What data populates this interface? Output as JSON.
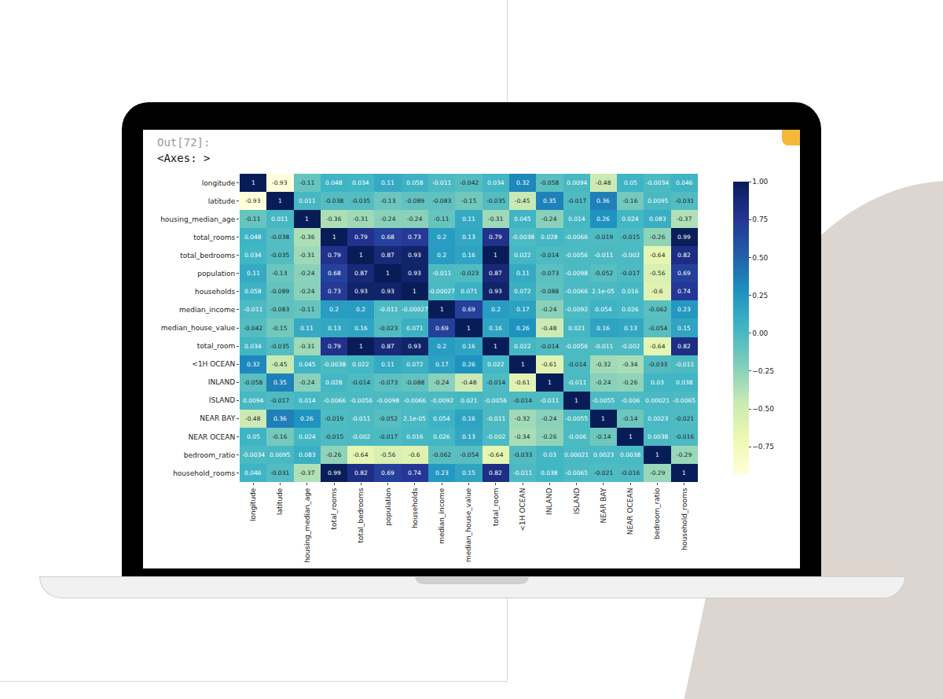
{
  "chart_data": {
    "type": "heatmap",
    "annotations": [
      "Out[72]:",
      "<Axes: >"
    ],
    "categories": [
      "longitude",
      "latitude",
      "housing_median_age",
      "total_rooms",
      "total_bedrooms",
      "population",
      "households",
      "median_income",
      "median_house_value",
      "total_room",
      "<1H OCEAN",
      "INLAND",
      "ISLAND",
      "NEAR BAY",
      "NEAR OCEAN",
      "bedroom_ratio",
      "household_rooms"
    ],
    "values": [
      [
        1,
        -0.93,
        -0.11,
        0.048,
        0.034,
        0.11,
        0.058,
        -0.011,
        -0.042,
        0.034,
        0.32,
        -0.058,
        0.0094,
        -0.48,
        0.05,
        -0.0034,
        0.046
      ],
      [
        -0.93,
        1,
        0.011,
        -0.038,
        -0.035,
        -0.13,
        -0.089,
        -0.083,
        -0.15,
        -0.035,
        -0.45,
        0.35,
        -0.017,
        0.36,
        -0.16,
        0.0095,
        -0.031
      ],
      [
        -0.11,
        0.011,
        1,
        -0.36,
        -0.31,
        -0.24,
        -0.24,
        -0.11,
        0.11,
        -0.31,
        0.045,
        -0.24,
        0.014,
        0.26,
        0.024,
        0.083,
        -0.37
      ],
      [
        0.048,
        -0.038,
        -0.36,
        1,
        0.79,
        0.68,
        0.73,
        0.2,
        0.13,
        0.79,
        -0.0038,
        0.028,
        -0.0066,
        -0.019,
        -0.015,
        -0.26,
        0.99
      ],
      [
        0.034,
        -0.035,
        -0.31,
        0.79,
        1,
        0.87,
        0.93,
        0.2,
        0.16,
        1,
        0.022,
        -0.014,
        -0.0056,
        -0.011,
        -0.002,
        -0.64,
        0.82
      ],
      [
        0.11,
        -0.13,
        -0.24,
        0.68,
        0.87,
        1,
        0.93,
        -0.011,
        -0.023,
        0.87,
        0.11,
        -0.073,
        -0.0098,
        -0.052,
        -0.017,
        -0.56,
        0.69
      ],
      [
        0.058,
        -0.089,
        -0.24,
        0.73,
        0.93,
        0.93,
        1,
        -0.00027,
        0.071,
        0.93,
        0.072,
        -0.088,
        -0.0066,
        2.1e-05,
        0.016,
        -0.6,
        0.74
      ],
      [
        -0.011,
        -0.083,
        -0.11,
        0.2,
        0.2,
        -0.011,
        -0.00027,
        1,
        0.69,
        0.2,
        0.17,
        -0.24,
        -0.0092,
        0.054,
        0.026,
        -0.062,
        0.23
      ],
      [
        -0.042,
        -0.15,
        0.11,
        0.13,
        0.16,
        -0.023,
        0.071,
        0.69,
        1,
        0.16,
        0.26,
        -0.48,
        0.021,
        0.16,
        0.13,
        -0.054,
        0.15
      ],
      [
        0.034,
        -0.035,
        -0.31,
        0.79,
        1,
        0.87,
        0.93,
        0.2,
        0.16,
        1,
        0.022,
        -0.014,
        -0.0056,
        -0.011,
        -0.002,
        -0.64,
        0.82
      ],
      [
        0.32,
        -0.45,
        0.045,
        -0.0038,
        0.022,
        0.11,
        0.072,
        0.17,
        0.26,
        0.022,
        1,
        -0.61,
        -0.014,
        -0.32,
        -0.34,
        -0.033,
        -0.011
      ],
      [
        -0.058,
        0.35,
        -0.24,
        0.028,
        -0.014,
        -0.073,
        -0.088,
        -0.24,
        -0.48,
        -0.014,
        -0.61,
        1,
        -0.011,
        -0.24,
        -0.26,
        0.03,
        0.038
      ],
      [
        0.0094,
        -0.017,
        0.014,
        -0.0066,
        -0.0056,
        -0.0098,
        -0.0066,
        -0.0092,
        0.021,
        -0.0056,
        -0.014,
        -0.011,
        1,
        -0.0055,
        -0.006,
        0.00021,
        -0.0065
      ],
      [
        -0.48,
        0.36,
        0.26,
        -0.019,
        -0.011,
        -0.052,
        2.1e-05,
        0.054,
        0.16,
        -0.011,
        -0.32,
        -0.24,
        -0.0055,
        1,
        -0.14,
        0.0023,
        -0.021
      ],
      [
        0.05,
        -0.16,
        0.024,
        -0.015,
        -0.002,
        -0.017,
        0.016,
        0.026,
        0.13,
        -0.002,
        -0.34,
        -0.26,
        -0.006,
        -0.14,
        1,
        0.0038,
        -0.016
      ],
      [
        -0.0034,
        0.0095,
        0.083,
        -0.26,
        -0.64,
        -0.56,
        -0.6,
        -0.062,
        -0.054,
        -0.64,
        -0.033,
        0.03,
        0.00021,
        0.0023,
        0.0038,
        1,
        -0.29
      ],
      [
        0.046,
        -0.031,
        -0.37,
        0.99,
        0.82,
        0.69,
        0.74,
        0.23,
        0.15,
        0.82,
        -0.011,
        0.038,
        -0.0065,
        -0.021,
        -0.016,
        -0.29,
        1
      ]
    ],
    "value_labels": [
      [
        "1",
        "-0.93",
        "-0.11",
        "0.048",
        "0.034",
        "0.11",
        "0.058",
        "-0.011",
        "-0.042",
        "0.034",
        "0.32",
        "-0.058",
        "0.0094",
        "-0.48",
        "0.05",
        "-0.0034",
        "0.046"
      ],
      [
        "-0.93",
        "1",
        "0.011",
        "-0.038",
        "-0.035",
        "-0.13",
        "-0.089",
        "-0.083",
        "-0.15",
        "-0.035",
        "-0.45",
        "0.35",
        "-0.017",
        "0.36",
        "-0.16",
        "0.0095",
        "-0.031"
      ],
      [
        "-0.11",
        "0.011",
        "1",
        "-0.36",
        "-0.31",
        "-0.24",
        "-0.24",
        "-0.11",
        "0.11",
        "-0.31",
        "0.045",
        "-0.24",
        "0.014",
        "0.26",
        "0.024",
        "0.083",
        "-0.37"
      ],
      [
        "0.048",
        "-0.038",
        "-0.36",
        "1",
        "0.79",
        "0.68",
        "0.73",
        "0.2",
        "0.13",
        "0.79",
        "-0.0038",
        "0.028",
        "-0.0066",
        "-0.019",
        "-0.015",
        "-0.26",
        "0.99"
      ],
      [
        "0.034",
        "-0.035",
        "-0.31",
        "0.79",
        "1",
        "0.87",
        "0.93",
        "0.2",
        "0.16",
        "1",
        "0.022",
        "-0.014",
        "-0.0056",
        "-0.011",
        "-0.002",
        "-0.64",
        "0.82"
      ],
      [
        "0.11",
        "-0.13",
        "-0.24",
        "0.68",
        "0.87",
        "1",
        "0.93",
        "-0.011",
        "-0.023",
        "0.87",
        "0.11",
        "-0.073",
        "-0.0098",
        "-0.052",
        "-0.017",
        "-0.56",
        "0.69"
      ],
      [
        "0.058",
        "-0.089",
        "-0.24",
        "0.73",
        "0.93",
        "0.93",
        "1",
        "-0.00027",
        "0.071",
        "0.93",
        "0.072",
        "-0.088",
        "-0.0066",
        "2.1e-05",
        "0.016",
        "-0.6",
        "0.74"
      ],
      [
        "-0.011",
        "-0.083",
        "-0.11",
        "0.2",
        "0.2",
        "-0.011",
        "-0.00027",
        "1",
        "0.69",
        "0.2",
        "0.17",
        "-0.24",
        "-0.0092",
        "0.054",
        "0.026",
        "-0.062",
        "0.23"
      ],
      [
        "-0.042",
        "-0.15",
        "0.11",
        "0.13",
        "0.16",
        "-0.023",
        "0.071",
        "0.69",
        "1",
        "0.16",
        "0.26",
        "-0.48",
        "0.021",
        "0.16",
        "0.13",
        "-0.054",
        "0.15"
      ],
      [
        "0.034",
        "-0.035",
        "-0.31",
        "0.79",
        "1",
        "0.87",
        "0.93",
        "0.2",
        "0.16",
        "1",
        "0.022",
        "-0.014",
        "-0.0056",
        "-0.011",
        "-0.002",
        "-0.64",
        "0.82"
      ],
      [
        "0.32",
        "-0.45",
        "0.045",
        "-0.0038",
        "0.022",
        "0.11",
        "0.072",
        "0.17",
        "0.26",
        "0.022",
        "1",
        "-0.61",
        "-0.014",
        "-0.32",
        "-0.34",
        "-0.033",
        "-0.011"
      ],
      [
        "-0.058",
        "0.35",
        "-0.24",
        "0.028",
        "-0.014",
        "-0.073",
        "-0.088",
        "-0.24",
        "-0.48",
        "-0.014",
        "-0.61",
        "1",
        "-0.011",
        "-0.24",
        "-0.26",
        "0.03",
        "0.038"
      ],
      [
        "0.0094",
        "-0.017",
        "0.014",
        "-0.0066",
        "-0.0056",
        "-0.0098",
        "-0.0066",
        "-0.0092",
        "0.021",
        "-0.0056",
        "-0.014",
        "-0.011",
        "1",
        "-0.0055",
        "-0.006",
        "0.00021",
        "-0.0065"
      ],
      [
        "-0.48",
        "0.36",
        "0.26",
        "-0.019",
        "-0.011",
        "-0.052",
        "2.1e-05",
        "0.054",
        "0.16",
        "-0.011",
        "-0.32",
        "-0.24",
        "-0.0055",
        "1",
        "-0.14",
        "0.0023",
        "-0.021"
      ],
      [
        "0.05",
        "-0.16",
        "0.024",
        "-0.015",
        "-0.002",
        "-0.017",
        "0.016",
        "0.026",
        "0.13",
        "-0.002",
        "-0.34",
        "-0.26",
        "-0.006",
        "-0.14",
        "1",
        "0.0038",
        "-0.016"
      ],
      [
        "-0.0034",
        "0.0095",
        "0.083",
        "-0.26",
        "-0.64",
        "-0.56",
        "-0.6",
        "-0.062",
        "-0.054",
        "-0.64",
        "-0.033",
        "0.03",
        "0.00021",
        "0.0023",
        "0.0038",
        "1",
        "-0.29"
      ],
      [
        "0.046",
        "-0.031",
        "-0.37",
        "0.99",
        "0.82",
        "0.69",
        "0.74",
        "0.23",
        "0.15",
        "0.82",
        "-0.011",
        "0.038",
        "-0.0065",
        "-0.021",
        "-0.016",
        "-0.29",
        "1"
      ]
    ],
    "data_labels": true,
    "colorbar": {
      "range": [
        -0.93,
        1
      ],
      "ticks": [
        {
          "value": -0.75,
          "label": "−0.75"
        },
        {
          "value": -0.5,
          "label": "−0.50"
        },
        {
          "value": -0.25,
          "label": "−0.25"
        },
        {
          "value": 0,
          "label": "0.00"
        },
        {
          "value": 0.25,
          "label": "0.25"
        },
        {
          "value": 0.5,
          "label": "0.50"
        },
        {
          "value": 0.75,
          "label": "0.75"
        },
        {
          "value": 1,
          "label": "1.00"
        }
      ]
    }
  }
}
